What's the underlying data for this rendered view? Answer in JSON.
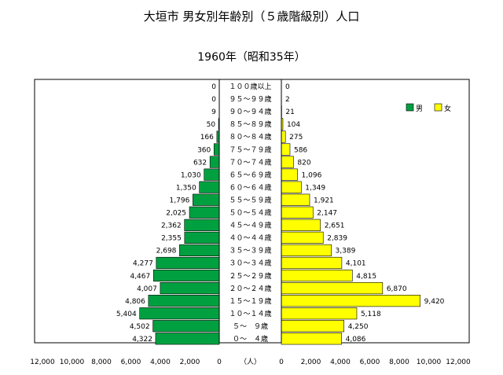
{
  "chart_data": {
    "type": "bar",
    "title": "大垣市 男女別年齢別（５歳階級別）人口",
    "subtitle": "1960年（昭和35年）",
    "unit_label": "（人）",
    "categories": [
      "100歳以上",
      "95～99歳",
      "90～94歳",
      "85～89歳",
      "80～84歳",
      "75～79歳",
      "70～74歳",
      "65～69歳",
      "60～64歳",
      "55～59歳",
      "50～54歳",
      "45～49歳",
      "40～44歳",
      "35～39歳",
      "30～34歳",
      "25～29歳",
      "20～24歳",
      "15～19歳",
      "10～14歳",
      "5～ 9歳",
      "0～ 4歳"
    ],
    "category_display": [
      "１００歳以上",
      "９５～９９歳",
      "９０～９４歳",
      "８５～８９歳",
      "８０～８４歳",
      "７５～７９歳",
      "７０～７４歳",
      "６５～６９歳",
      "６０～６４歳",
      "５５～５９歳",
      "５０～５４歳",
      "４５～４９歳",
      "４０～４４歳",
      "３５～３９歳",
      "３０～３４歳",
      "２５～２９歳",
      "２０～２４歳",
      "１５～１９歳",
      "１０～１４歳",
      "５～　９歳",
      "０～　４歳"
    ],
    "series": [
      {
        "name": "男",
        "color": "#00a040",
        "values": [
          0,
          0,
          9,
          50,
          166,
          360,
          632,
          1030,
          1350,
          1796,
          2025,
          2362,
          2355,
          2698,
          4277,
          4467,
          4007,
          4806,
          5404,
          4502,
          4322
        ],
        "labels": [
          "0",
          "0",
          "9",
          "50",
          "166",
          "360",
          "632",
          "1,030",
          "1,350",
          "1,796",
          "2,025",
          "2,362",
          "2,355",
          "2,698",
          "4,277",
          "4,467",
          "4,007",
          "4,806",
          "5,404",
          "4,502",
          "4,322"
        ]
      },
      {
        "name": "女",
        "color": "#ffff00",
        "values": [
          0,
          2,
          21,
          104,
          275,
          586,
          820,
          1096,
          1349,
          1921,
          2147,
          2651,
          2839,
          3389,
          4101,
          4815,
          6870,
          9420,
          5118,
          4250,
          4086
        ],
        "labels": [
          "0",
          "2",
          "21",
          "104",
          "275",
          "586",
          "820",
          "1,096",
          "1,349",
          "1,921",
          "2,147",
          "2,651",
          "2,839",
          "3,389",
          "4,101",
          "4,815",
          "6,870",
          "9,420",
          "5,118",
          "4,250",
          "4,086"
        ]
      }
    ],
    "xlim": [
      0,
      12000
    ],
    "left_ticks": [
      "12,000",
      "10,000",
      "8,000",
      "6,000",
      "4,000",
      "2,000",
      "0"
    ],
    "right_ticks": [
      "0",
      "2,000",
      "4,000",
      "6,000",
      "8,000",
      "10,000",
      "12,000"
    ],
    "legend_position": "top-right"
  }
}
